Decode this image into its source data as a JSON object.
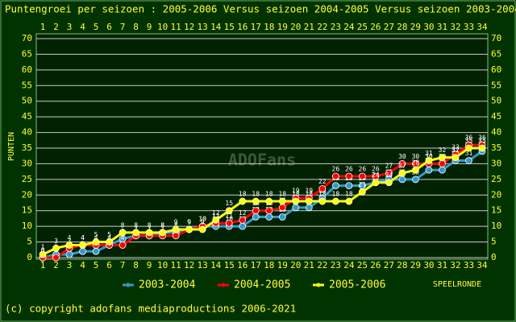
{
  "chart_data": {
    "type": "line",
    "title": "Puntengroei per seizoen : 2005-2006 Versus seizoen 2004-2005 Versus seizoen 2003-2004",
    "y_label": "PUNTEN",
    "x_label": "SPEELRONDE",
    "watermark": "ADOFans",
    "footer": "(c) copyright adofans mediaproductions 2006-2021",
    "x": [
      1,
      2,
      3,
      4,
      5,
      6,
      7,
      8,
      9,
      10,
      11,
      12,
      13,
      14,
      15,
      16,
      17,
      18,
      19,
      20,
      21,
      22,
      23,
      24,
      25,
      26,
      27,
      28,
      29,
      30,
      31,
      32,
      33,
      34
    ],
    "xlim": [
      1,
      34
    ],
    "ylim": [
      0,
      70
    ],
    "yticks": [
      0,
      5,
      10,
      15,
      20,
      25,
      30,
      35,
      40,
      45,
      50,
      55,
      60,
      65,
      70
    ],
    "grid": true,
    "series": [
      {
        "name": "2003-2004",
        "color": "#3399cc",
        "values": [
          0,
          1,
          1,
          2,
          2,
          4,
          6,
          7,
          7,
          8,
          8,
          9,
          10,
          10,
          10,
          10,
          13,
          13,
          13,
          16,
          16,
          19,
          23,
          23,
          23,
          24,
          25,
          25,
          25,
          28,
          28,
          31,
          31,
          34
        ]
      },
      {
        "name": "2004-2005",
        "color": "#ff0000",
        "values": [
          0,
          0,
          3,
          4,
          4,
          4,
          4,
          7,
          7,
          7,
          7,
          9,
          10,
          11,
          11,
          12,
          15,
          15,
          16,
          19,
          19,
          22,
          26,
          26,
          26,
          26,
          27,
          30,
          30,
          30,
          30,
          33,
          36,
          36
        ]
      },
      {
        "name": "2005-2006",
        "color": "#ffff00",
        "values": [
          1,
          3,
          4,
          4,
          5,
          5,
          8,
          8,
          8,
          8,
          9,
          9,
          9,
          12,
          15,
          18,
          18,
          18,
          18,
          18,
          18,
          18,
          18,
          18,
          21,
          24,
          24,
          27,
          28,
          31,
          32,
          32,
          35,
          35
        ]
      }
    ]
  }
}
